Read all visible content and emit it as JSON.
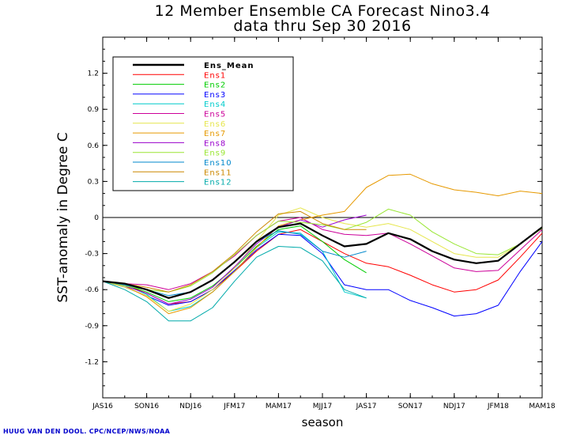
{
  "title_line1": "12 Member Ensemble CA Forecast Nino3.4",
  "title_line2": "data thru Sep 30 2016",
  "credit": "HUUG VAN DEN DOOL. CPC/NCEP/NWS/NOAA",
  "chart_data": {
    "type": "line",
    "xlabel": "season",
    "ylabel": "SST-anomaly in Degree C",
    "ylim": [
      -1.5,
      1.5
    ],
    "yticks": [
      1.2,
      0.9,
      0.6,
      0.3,
      0,
      -0.3,
      -0.6,
      -0.9,
      -1.2
    ],
    "ytick_labels": [
      "1.2",
      "0.9",
      "0.6",
      "0.3",
      "0",
      "-0.3",
      "-0.6",
      "-0.9",
      "-1.2"
    ],
    "xlim": [
      0,
      20
    ],
    "xticks": [
      0,
      2,
      4,
      6,
      8,
      10,
      12,
      14,
      16,
      18,
      20
    ],
    "xtick_labels": [
      "JAS16",
      "SON16",
      "NDJ16",
      "JFM17",
      "MAM17",
      "MJJ17",
      "JAS17",
      "SON17",
      "NDJ17",
      "JFM18",
      "MAM18"
    ],
    "zero_line": true,
    "grid": false,
    "legend_position": "top-left",
    "series": [
      {
        "name": "Ens_Mean",
        "color": "#000000",
        "width": 2.2,
        "x": [
          0,
          1,
          2,
          3,
          4,
          5,
          6,
          7,
          8,
          9,
          10,
          11,
          12,
          13,
          14,
          15,
          16,
          17,
          18,
          19,
          20
        ],
        "y": [
          -0.53,
          -0.55,
          -0.6,
          -0.67,
          -0.62,
          -0.52,
          -0.37,
          -0.2,
          -0.08,
          -0.05,
          -0.15,
          -0.24,
          -0.22,
          -0.13,
          -0.18,
          -0.28,
          -0.35,
          -0.38,
          -0.36,
          -0.22,
          -0.08
        ]
      },
      {
        "name": "Ens1",
        "color": "#ff0000",
        "width": 1,
        "x": [
          0,
          1,
          2,
          3,
          4,
          5,
          6,
          7,
          8,
          9,
          10,
          11,
          12,
          13,
          14,
          15,
          16,
          17,
          18,
          19,
          20
        ],
        "y": [
          -0.53,
          -0.56,
          -0.63,
          -0.72,
          -0.7,
          -0.6,
          -0.45,
          -0.28,
          -0.14,
          -0.1,
          -0.2,
          -0.3,
          -0.38,
          -0.41,
          -0.48,
          -0.56,
          -0.62,
          -0.6,
          -0.52,
          -0.33,
          -0.13
        ]
      },
      {
        "name": "Ens2",
        "color": "#00cc00",
        "width": 1,
        "x": [
          0,
          1,
          2,
          3,
          4,
          5,
          6,
          7,
          8,
          9,
          10,
          11,
          12
        ],
        "y": [
          -0.53,
          -0.56,
          -0.62,
          -0.7,
          -0.67,
          -0.57,
          -0.42,
          -0.24,
          -0.1,
          -0.07,
          -0.2,
          -0.35,
          -0.46
        ]
      },
      {
        "name": "Ens3",
        "color": "#0000ff",
        "width": 1,
        "x": [
          0,
          1,
          2,
          3,
          4,
          5,
          6,
          7,
          8,
          9,
          10,
          11,
          12,
          13,
          14,
          15,
          16,
          17,
          18,
          19,
          20
        ],
        "y": [
          -0.53,
          -0.58,
          -0.65,
          -0.73,
          -0.7,
          -0.6,
          -0.44,
          -0.27,
          -0.14,
          -0.15,
          -0.3,
          -0.56,
          -0.6,
          -0.6,
          -0.69,
          -0.75,
          -0.82,
          -0.8,
          -0.73,
          -0.45,
          -0.2
        ]
      },
      {
        "name": "Ens4",
        "color": "#00cccc",
        "width": 1,
        "x": [
          0,
          1,
          2,
          3,
          4,
          5,
          6,
          7,
          8,
          9,
          10,
          11,
          12
        ],
        "y": [
          -0.53,
          -0.56,
          -0.64,
          -0.78,
          -0.74,
          -0.62,
          -0.45,
          -0.25,
          -0.12,
          -0.13,
          -0.28,
          -0.62,
          -0.67
        ]
      },
      {
        "name": "Ens5",
        "color": "#cc0099",
        "width": 1,
        "x": [
          0,
          1,
          2,
          3,
          4,
          5,
          6,
          7,
          8,
          9,
          10,
          11,
          12,
          13,
          14,
          15,
          16,
          17,
          18,
          19,
          20
        ],
        "y": [
          -0.53,
          -0.55,
          -0.56,
          -0.6,
          -0.55,
          -0.45,
          -0.32,
          -0.15,
          -0.03,
          0.0,
          -0.1,
          -0.14,
          -0.15,
          -0.13,
          -0.22,
          -0.32,
          -0.42,
          -0.45,
          -0.44,
          -0.27,
          -0.1
        ]
      },
      {
        "name": "Ens6",
        "color": "#e6e64d",
        "width": 1,
        "x": [
          0,
          1,
          2,
          3,
          4,
          5,
          6,
          7,
          8,
          9,
          10,
          11,
          12,
          13,
          14,
          15,
          16,
          17,
          18,
          19,
          20
        ],
        "y": [
          -0.53,
          -0.58,
          -0.65,
          -0.78,
          -0.72,
          -0.6,
          -0.42,
          -0.2,
          0.02,
          0.08,
          0.0,
          -0.05,
          -0.08,
          -0.05,
          -0.1,
          -0.2,
          -0.3,
          -0.33,
          -0.33,
          -0.22,
          -0.08
        ]
      },
      {
        "name": "Ens7",
        "color": "#e69900",
        "width": 1,
        "x": [
          0,
          1,
          2,
          3,
          4,
          5,
          6,
          7,
          8,
          9,
          10,
          11,
          12,
          13,
          14,
          15,
          16,
          17,
          18,
          19,
          20
        ],
        "y": [
          -0.53,
          -0.57,
          -0.66,
          -0.8,
          -0.75,
          -0.62,
          -0.45,
          -0.25,
          -0.07,
          -0.02,
          0.02,
          0.05,
          0.25,
          0.35,
          0.36,
          0.28,
          0.23,
          0.21,
          0.18,
          0.22,
          0.2
        ]
      },
      {
        "name": "Ens8",
        "color": "#9900cc",
        "width": 1,
        "x": [
          0,
          1,
          2,
          3,
          4,
          5,
          6,
          7,
          8,
          9,
          10,
          11,
          12
        ],
        "y": [
          -0.53,
          -0.57,
          -0.63,
          -0.72,
          -0.68,
          -0.58,
          -0.41,
          -0.22,
          -0.08,
          -0.02,
          -0.08,
          -0.02,
          0.02
        ]
      },
      {
        "name": "Ens9",
        "color": "#99e633",
        "width": 1,
        "x": [
          0,
          1,
          2,
          3,
          4,
          5,
          6,
          7,
          8,
          9,
          10,
          11,
          12,
          13,
          14,
          15,
          16,
          17,
          18,
          19,
          20
        ],
        "y": [
          -0.53,
          -0.57,
          -0.6,
          -0.62,
          -0.57,
          -0.46,
          -0.31,
          -0.15,
          -0.03,
          -0.04,
          -0.06,
          -0.1,
          -0.04,
          0.07,
          0.02,
          -0.12,
          -0.22,
          -0.3,
          -0.31,
          -0.22,
          -0.09
        ]
      },
      {
        "name": "Ens10",
        "color": "#0088cc",
        "width": 1,
        "x": [
          0,
          1,
          2,
          3,
          4,
          5,
          6,
          7,
          8,
          9,
          10,
          11,
          12
        ],
        "y": [
          -0.53,
          -0.56,
          -0.6,
          -0.65,
          -0.62,
          -0.52,
          -0.37,
          -0.2,
          -0.11,
          -0.14,
          -0.28,
          -0.33,
          -0.28
        ]
      },
      {
        "name": "Ens11",
        "color": "#cc8800",
        "width": 1,
        "x": [
          0,
          1,
          2,
          3,
          4,
          5,
          6,
          7,
          8,
          9,
          10,
          11,
          12
        ],
        "y": [
          -0.53,
          -0.55,
          -0.58,
          -0.62,
          -0.56,
          -0.45,
          -0.3,
          -0.12,
          0.03,
          0.05,
          -0.05,
          -0.1,
          -0.1
        ]
      },
      {
        "name": "Ens12",
        "color": "#00aaaa",
        "width": 1,
        "x": [
          0,
          1,
          2,
          3,
          4,
          5,
          6,
          7,
          8,
          9,
          10,
          11,
          12
        ],
        "y": [
          -0.53,
          -0.6,
          -0.7,
          -0.86,
          -0.86,
          -0.75,
          -0.53,
          -0.33,
          -0.24,
          -0.25,
          -0.36,
          -0.6,
          -0.67
        ]
      }
    ]
  }
}
